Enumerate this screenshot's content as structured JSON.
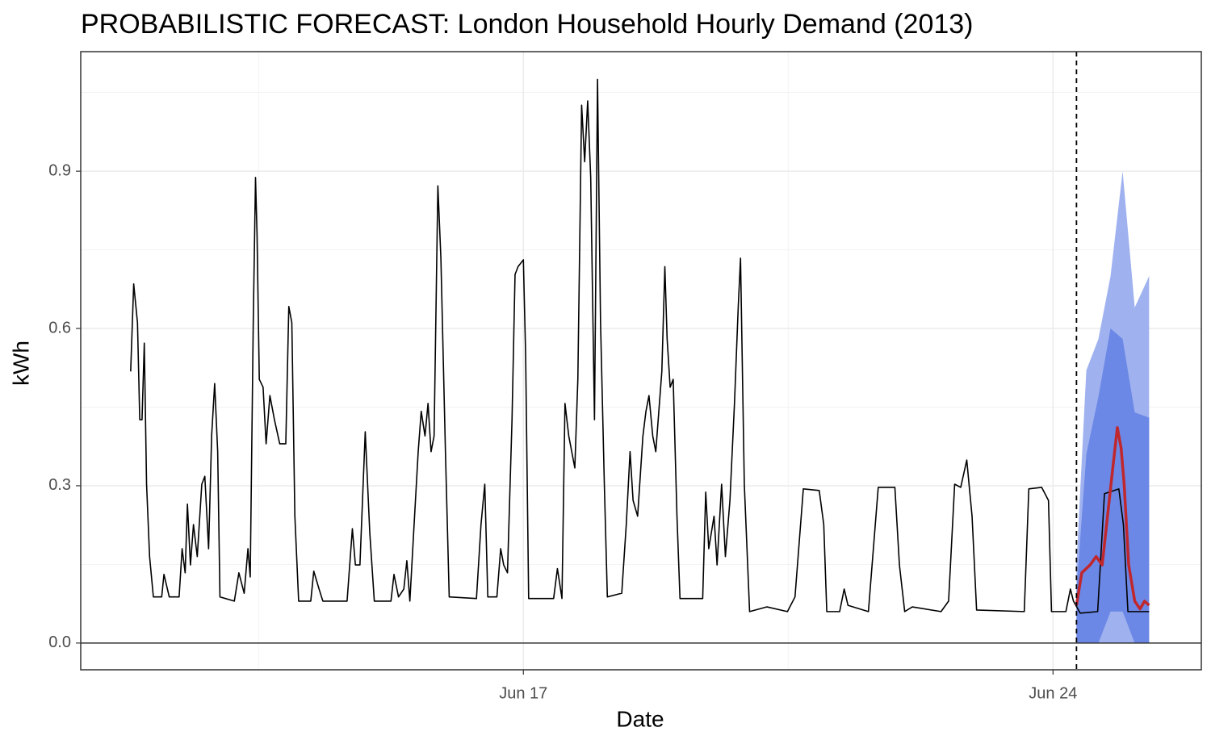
{
  "chart_data": {
    "type": "line",
    "title": "PROBABILISTIC FORECAST: London Household Hourly Demand (2013)",
    "x_label": "Date",
    "y_label": "kWh",
    "xlim": [
      11.15,
      25.96
    ],
    "ylim": [
      -0.051,
      1.128
    ],
    "xticks": [
      {
        "value": 17,
        "label": "Jun 17"
      },
      {
        "value": 24,
        "label": "Jun 24"
      }
    ],
    "yticks": [
      0.0,
      0.3,
      0.6,
      0.9
    ],
    "xminor": [
      13.5,
      20.5
    ],
    "yminor": [
      0.15,
      0.45,
      0.75,
      1.05
    ],
    "grid": true,
    "hline": 0,
    "forecast_start": 24.31,
    "bands": [
      {
        "color": "#9fb2ef",
        "x": [
          24.31,
          24.44,
          24.6,
          24.76,
          24.92,
          25.08,
          25.27
        ],
        "lower": [
          0,
          0,
          0,
          0,
          0,
          0,
          0
        ],
        "upper": [
          0.15,
          0.52,
          0.58,
          0.7,
          0.9,
          0.64,
          0.7
        ]
      },
      {
        "color": "#6c88e6",
        "x": [
          24.31,
          24.44,
          24.6,
          24.76,
          24.92,
          25.08,
          25.27
        ],
        "lower": [
          0,
          0,
          0,
          0.06,
          0.06,
          0,
          0
        ],
        "upper": [
          0.1,
          0.36,
          0.47,
          0.6,
          0.58,
          0.44,
          0.43
        ]
      }
    ],
    "series": [
      {
        "color": "#000000",
        "width": 1.6,
        "x": [
          11.81,
          11.85,
          11.9,
          11.93,
          11.96,
          11.99,
          12.02,
          12.06,
          12.11,
          12.22,
          12.25,
          12.32,
          12.45,
          12.49,
          12.53,
          12.56,
          12.6,
          12.64,
          12.69,
          12.75,
          12.79,
          12.84,
          12.88,
          12.92,
          12.96,
          12.99,
          13.18,
          13.24,
          13.31,
          13.36,
          13.39,
          13.43,
          13.46,
          13.48,
          13.51,
          13.56,
          13.6,
          13.65,
          13.71,
          13.78,
          13.86,
          13.9,
          13.94,
          13.98,
          14.03,
          14.19,
          14.23,
          14.3,
          14.35,
          14.67,
          14.74,
          14.78,
          14.84,
          14.91,
          14.97,
          15.03,
          15.25,
          15.29,
          15.35,
          15.42,
          15.46,
          15.5,
          15.55,
          15.61,
          15.65,
          15.7,
          15.74,
          15.78,
          15.82,
          15.87,
          15.91,
          15.97,
          16.02,
          16.38,
          16.44,
          16.49,
          16.53,
          16.65,
          16.7,
          16.74,
          16.79,
          16.85,
          16.89,
          16.93,
          17.0,
          17.03,
          17.07,
          17.4,
          17.45,
          17.51,
          17.55,
          17.6,
          17.68,
          17.72,
          17.77,
          17.81,
          17.85,
          17.89,
          17.94,
          17.98,
          18.02,
          18.07,
          18.11,
          18.3,
          18.36,
          18.41,
          18.45,
          18.51,
          18.58,
          18.62,
          18.66,
          18.71,
          18.75,
          18.83,
          18.87,
          18.9,
          18.94,
          18.98,
          19.03,
          19.07,
          19.37,
          19.41,
          19.45,
          19.52,
          19.56,
          19.62,
          19.67,
          19.73,
          19.79,
          19.84,
          19.87,
          19.92,
          19.99,
          20.22,
          20.49,
          20.59,
          20.7,
          20.91,
          20.97,
          21.01,
          21.18,
          21.24,
          21.29,
          21.56,
          21.69,
          21.91,
          21.97,
          22.04,
          22.14,
          22.52,
          22.62,
          22.7,
          22.78,
          22.86,
          22.93,
          22.99,
          23.62,
          23.68,
          23.85,
          23.94,
          23.98,
          24.17,
          24.23,
          24.27,
          24.36,
          24.59,
          24.68,
          24.87,
          24.93,
          24.99,
          25.27
        ],
        "values": [
          0.518,
          0.685,
          0.611,
          0.426,
          0.426,
          0.572,
          0.303,
          0.165,
          0.088,
          0.088,
          0.131,
          0.088,
          0.088,
          0.18,
          0.134,
          0.265,
          0.149,
          0.226,
          0.165,
          0.303,
          0.318,
          0.18,
          0.395,
          0.495,
          0.365,
          0.088,
          0.08,
          0.134,
          0.095,
          0.18,
          0.126,
          0.611,
          0.888,
          0.78,
          0.503,
          0.488,
          0.38,
          0.472,
          0.426,
          0.38,
          0.38,
          0.642,
          0.611,
          0.242,
          0.08,
          0.08,
          0.137,
          0.103,
          0.08,
          0.08,
          0.218,
          0.149,
          0.149,
          0.403,
          0.211,
          0.08,
          0.08,
          0.131,
          0.088,
          0.103,
          0.157,
          0.08,
          0.211,
          0.365,
          0.442,
          0.395,
          0.457,
          0.365,
          0.395,
          0.872,
          0.734,
          0.365,
          0.088,
          0.085,
          0.226,
          0.303,
          0.088,
          0.088,
          0.18,
          0.149,
          0.134,
          0.426,
          0.703,
          0.718,
          0.731,
          0.549,
          0.085,
          0.085,
          0.142,
          0.085,
          0.457,
          0.395,
          0.334,
          0.503,
          1.026,
          0.918,
          1.034,
          0.888,
          0.426,
          1.075,
          0.611,
          0.303,
          0.088,
          0.095,
          0.226,
          0.365,
          0.272,
          0.242,
          0.395,
          0.442,
          0.472,
          0.395,
          0.365,
          0.518,
          0.718,
          0.58,
          0.488,
          0.503,
          0.242,
          0.085,
          0.085,
          0.288,
          0.18,
          0.242,
          0.149,
          0.303,
          0.165,
          0.272,
          0.457,
          0.642,
          0.734,
          0.303,
          0.06,
          0.069,
          0.06,
          0.088,
          0.294,
          0.291,
          0.226,
          0.06,
          0.06,
          0.103,
          0.072,
          0.06,
          0.297,
          0.297,
          0.149,
          0.06,
          0.069,
          0.06,
          0.08,
          0.303,
          0.297,
          0.349,
          0.242,
          0.063,
          0.06,
          0.294,
          0.297,
          0.272,
          0.06,
          0.06,
          0.103,
          0.08,
          0.057,
          0.06,
          0.285,
          0.294,
          0.226,
          0.06,
          0.06
        ]
      },
      {
        "color": "#c0272d",
        "width": 3.5,
        "x": [
          24.31,
          24.38,
          24.49,
          24.57,
          24.65,
          24.72,
          24.79,
          24.85,
          24.9,
          24.94,
          25.0,
          25.08,
          25.15,
          25.21,
          25.27
        ],
        "values": [
          0.072,
          0.134,
          0.149,
          0.165,
          0.149,
          0.242,
          0.334,
          0.411,
          0.372,
          0.303,
          0.149,
          0.08,
          0.065,
          0.08,
          0.072
        ]
      }
    ]
  }
}
